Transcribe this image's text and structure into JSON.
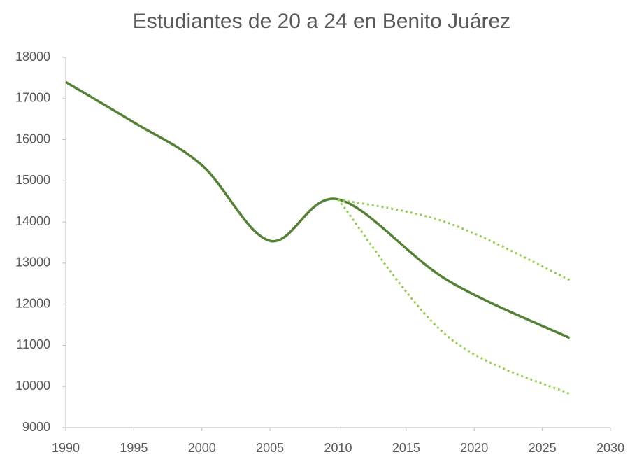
{
  "chart_data": {
    "type": "line",
    "title": "Estudiantes de 20 a 24 en Benito Juárez",
    "smooth": true,
    "series": [
      {
        "color": "#548235",
        "dash": false,
        "x": [
          1990,
          1995,
          2000,
          2005,
          2010,
          2018,
          2027
        ],
        "values": [
          17400,
          16420,
          15380,
          13540,
          14550,
          12590,
          11180
        ]
      },
      {
        "color": "#92d050",
        "dash": true,
        "x": [
          2010,
          2018,
          2027
        ],
        "values": [
          14550,
          13985,
          12590
        ]
      },
      {
        "color": "#92d050",
        "dash": true,
        "x": [
          2010,
          2018,
          2027
        ],
        "values": [
          14550,
          11230,
          9820
        ]
      }
    ],
    "xlim": [
      1990,
      2030
    ],
    "xticks": [
      1990,
      1995,
      2000,
      2005,
      2010,
      2015,
      2020,
      2025,
      2030
    ],
    "ylim": [
      9000,
      18000
    ],
    "yticks": [
      9000,
      10000,
      11000,
      12000,
      13000,
      14000,
      15000,
      16000,
      17000,
      18000
    ],
    "grid": false
  }
}
